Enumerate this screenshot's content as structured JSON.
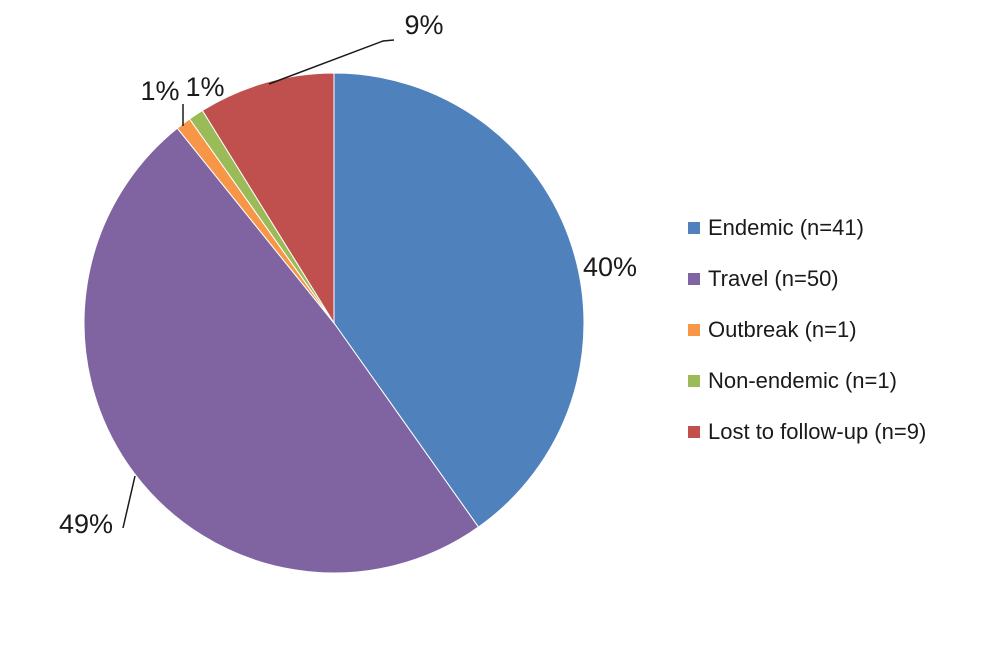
{
  "chart_data": {
    "type": "pie",
    "slices": [
      {
        "name": "Endemic (n=41)",
        "value": 41,
        "percent_label": "40%",
        "color": "#4F81BD"
      },
      {
        "name": "Travel (n=50)",
        "value": 50,
        "percent_label": "49%",
        "color": "#8064A2"
      },
      {
        "name": "Outbreak (n=1)",
        "value": 1,
        "percent_label": "1%",
        "color": "#F79646"
      },
      {
        "name": "Non-endemic (n=1)",
        "value": 1,
        "percent_label": "1%",
        "color": "#9BBB59"
      },
      {
        "name": "Lost to follow-up (n=9)",
        "value": 9,
        "percent_label": "9%",
        "color": "#C0504D"
      }
    ],
    "start_angle": "12 o'clock",
    "direction": "clockwise",
    "legend_position": "right"
  }
}
